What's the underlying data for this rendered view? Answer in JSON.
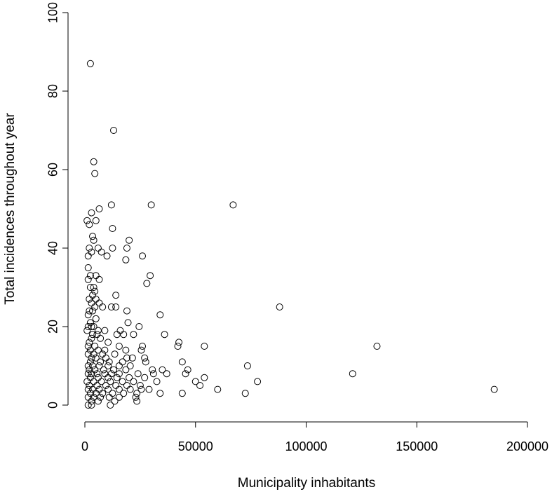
{
  "chart_data": {
    "type": "scatter",
    "title": "",
    "xlabel": "Municipality inhabitants",
    "ylabel": "Total incidences throughout year",
    "xlim": [
      0,
      200000
    ],
    "ylim": [
      0,
      100
    ],
    "xticks": [
      0,
      50000,
      100000,
      150000,
      200000
    ],
    "yticks": [
      0,
      20,
      40,
      60,
      80,
      100
    ],
    "xtick_labels": [
      "0",
      "50000",
      "100000",
      "150000",
      "200000"
    ],
    "ytick_labels": [
      "0",
      "20",
      "40",
      "60",
      "80",
      "100"
    ],
    "grid": false,
    "marker": "open-circle",
    "points": [
      [
        2500,
        87
      ],
      [
        13000,
        70
      ],
      [
        4000,
        62
      ],
      [
        4500,
        59
      ],
      [
        30000,
        51
      ],
      [
        67000,
        51
      ],
      [
        6500,
        50
      ],
      [
        12000,
        51
      ],
      [
        3000,
        49
      ],
      [
        5000,
        47
      ],
      [
        1000,
        47
      ],
      [
        2000,
        46
      ],
      [
        12500,
        45
      ],
      [
        3500,
        43
      ],
      [
        4000,
        42
      ],
      [
        20000,
        42
      ],
      [
        2000,
        40
      ],
      [
        12500,
        40
      ],
      [
        19000,
        40
      ],
      [
        6000,
        40
      ],
      [
        3000,
        39
      ],
      [
        7500,
        39
      ],
      [
        10000,
        38
      ],
      [
        1500,
        38
      ],
      [
        26000,
        38
      ],
      [
        18500,
        37
      ],
      [
        1500,
        35
      ],
      [
        2500,
        33
      ],
      [
        5000,
        33
      ],
      [
        29500,
        33
      ],
      [
        1500,
        32
      ],
      [
        6500,
        32
      ],
      [
        28000,
        31
      ],
      [
        2500,
        30
      ],
      [
        4000,
        30
      ],
      [
        4500,
        29
      ],
      [
        3500,
        28
      ],
      [
        5000,
        27
      ],
      [
        14000,
        28
      ],
      [
        2000,
        27
      ],
      [
        3000,
        26
      ],
      [
        6500,
        26
      ],
      [
        8000,
        25
      ],
      [
        12000,
        25
      ],
      [
        14000,
        25
      ],
      [
        88000,
        25
      ],
      [
        4500,
        25
      ],
      [
        2000,
        24
      ],
      [
        3500,
        24
      ],
      [
        19000,
        24
      ],
      [
        1500,
        23
      ],
      [
        34000,
        23
      ],
      [
        5000,
        22
      ],
      [
        2500,
        21
      ],
      [
        3000,
        20
      ],
      [
        1500,
        20
      ],
      [
        4000,
        20
      ],
      [
        19500,
        21
      ],
      [
        24500,
        20
      ],
      [
        6000,
        19
      ],
      [
        9000,
        19
      ],
      [
        16000,
        19
      ],
      [
        1000,
        19
      ],
      [
        3500,
        18
      ],
      [
        5500,
        18
      ],
      [
        14500,
        18
      ],
      [
        17500,
        18
      ],
      [
        22000,
        18
      ],
      [
        36000,
        18
      ],
      [
        3000,
        17
      ],
      [
        7000,
        17
      ],
      [
        10500,
        16
      ],
      [
        2000,
        16
      ],
      [
        42500,
        16
      ],
      [
        1500,
        15
      ],
      [
        4500,
        15
      ],
      [
        15500,
        15
      ],
      [
        26000,
        15
      ],
      [
        42000,
        15
      ],
      [
        54000,
        15
      ],
      [
        132000,
        15
      ],
      [
        2500,
        14
      ],
      [
        6000,
        14
      ],
      [
        9000,
        14
      ],
      [
        18500,
        14
      ],
      [
        25500,
        14
      ],
      [
        1500,
        13
      ],
      [
        4000,
        13
      ],
      [
        8000,
        13
      ],
      [
        13500,
        13
      ],
      [
        19000,
        12
      ],
      [
        3000,
        12
      ],
      [
        5000,
        12
      ],
      [
        9500,
        12
      ],
      [
        21500,
        12
      ],
      [
        27000,
        12
      ],
      [
        2500,
        11
      ],
      [
        7000,
        11
      ],
      [
        11000,
        11
      ],
      [
        17000,
        11
      ],
      [
        27500,
        11
      ],
      [
        44000,
        11
      ],
      [
        1500,
        10
      ],
      [
        3500,
        10
      ],
      [
        6500,
        10
      ],
      [
        10500,
        10
      ],
      [
        15500,
        10
      ],
      [
        20500,
        10
      ],
      [
        73500,
        10
      ],
      [
        2000,
        9
      ],
      [
        4500,
        9
      ],
      [
        8500,
        9
      ],
      [
        13000,
        9
      ],
      [
        18500,
        9
      ],
      [
        30500,
        9
      ],
      [
        35000,
        9
      ],
      [
        46500,
        9
      ],
      [
        1500,
        8
      ],
      [
        3000,
        8
      ],
      [
        5500,
        8
      ],
      [
        9000,
        8
      ],
      [
        12000,
        8
      ],
      [
        15500,
        8
      ],
      [
        24000,
        8
      ],
      [
        31000,
        8
      ],
      [
        37000,
        8
      ],
      [
        45500,
        8
      ],
      [
        121000,
        8
      ],
      [
        2500,
        7
      ],
      [
        6000,
        7
      ],
      [
        10500,
        7
      ],
      [
        14500,
        7
      ],
      [
        20000,
        7
      ],
      [
        27000,
        7
      ],
      [
        54000,
        7
      ],
      [
        1000,
        6
      ],
      [
        4000,
        6
      ],
      [
        7500,
        6
      ],
      [
        11500,
        6
      ],
      [
        17000,
        6
      ],
      [
        22000,
        6
      ],
      [
        32500,
        6
      ],
      [
        50000,
        6
      ],
      [
        78000,
        6
      ],
      [
        2000,
        5
      ],
      [
        5500,
        5
      ],
      [
        9500,
        5
      ],
      [
        14000,
        5
      ],
      [
        19000,
        5
      ],
      [
        25000,
        5
      ],
      [
        52000,
        5
      ],
      [
        1500,
        4
      ],
      [
        3500,
        4
      ],
      [
        6500,
        4
      ],
      [
        10500,
        4
      ],
      [
        15500,
        4
      ],
      [
        20500,
        4
      ],
      [
        25500,
        4
      ],
      [
        29000,
        4
      ],
      [
        60000,
        4
      ],
      [
        185000,
        4
      ],
      [
        2500,
        3
      ],
      [
        5000,
        3
      ],
      [
        8000,
        3
      ],
      [
        12500,
        3
      ],
      [
        17500,
        3
      ],
      [
        23500,
        3
      ],
      [
        34000,
        3
      ],
      [
        44000,
        3
      ],
      [
        72500,
        3
      ],
      [
        1500,
        2
      ],
      [
        4000,
        2
      ],
      [
        7000,
        2
      ],
      [
        11000,
        2
      ],
      [
        15500,
        2
      ],
      [
        23000,
        2
      ],
      [
        3000,
        1
      ],
      [
        6000,
        1
      ],
      [
        13500,
        1
      ],
      [
        23500,
        1
      ],
      [
        1500,
        0
      ],
      [
        3000,
        0
      ],
      [
        11500,
        0
      ]
    ]
  }
}
